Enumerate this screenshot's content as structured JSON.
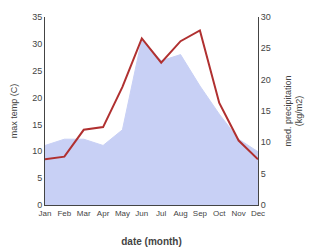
{
  "chart_data": {
    "type": "line",
    "xlabel": "date (month)",
    "ylabel": "max temp (C)",
    "y2label": "med. precipitation\n(kg/m2)",
    "categories": [
      "Jan",
      "Feb",
      "Mar",
      "Apr",
      "May",
      "Jun",
      "Jul",
      "Aug",
      "Sep",
      "Oct",
      "Nov",
      "Dec"
    ],
    "series": [
      {
        "type": "area",
        "color": "#c8d0f5",
        "axis": "y2",
        "values": [
          9.5,
          10.5,
          10.5,
          9.5,
          12.0,
          26.5,
          23.0,
          24.0,
          19.0,
          14.5,
          10.5,
          8.5
        ]
      },
      {
        "type": "line",
        "color": "#b03030",
        "values": [
          8.5,
          9.0,
          14.0,
          14.5,
          22.0,
          31.0,
          26.5,
          30.5,
          32.5,
          19.0,
          12.0,
          8.5
        ]
      }
    ],
    "ylim": [
      0,
      35
    ],
    "yticks": [
      0,
      5,
      10,
      15,
      20,
      25,
      30,
      35
    ],
    "y2lim": [
      0,
      30
    ],
    "y2ticks": [
      0,
      5,
      10,
      15,
      20,
      25,
      30
    ],
    "grid": false
  }
}
